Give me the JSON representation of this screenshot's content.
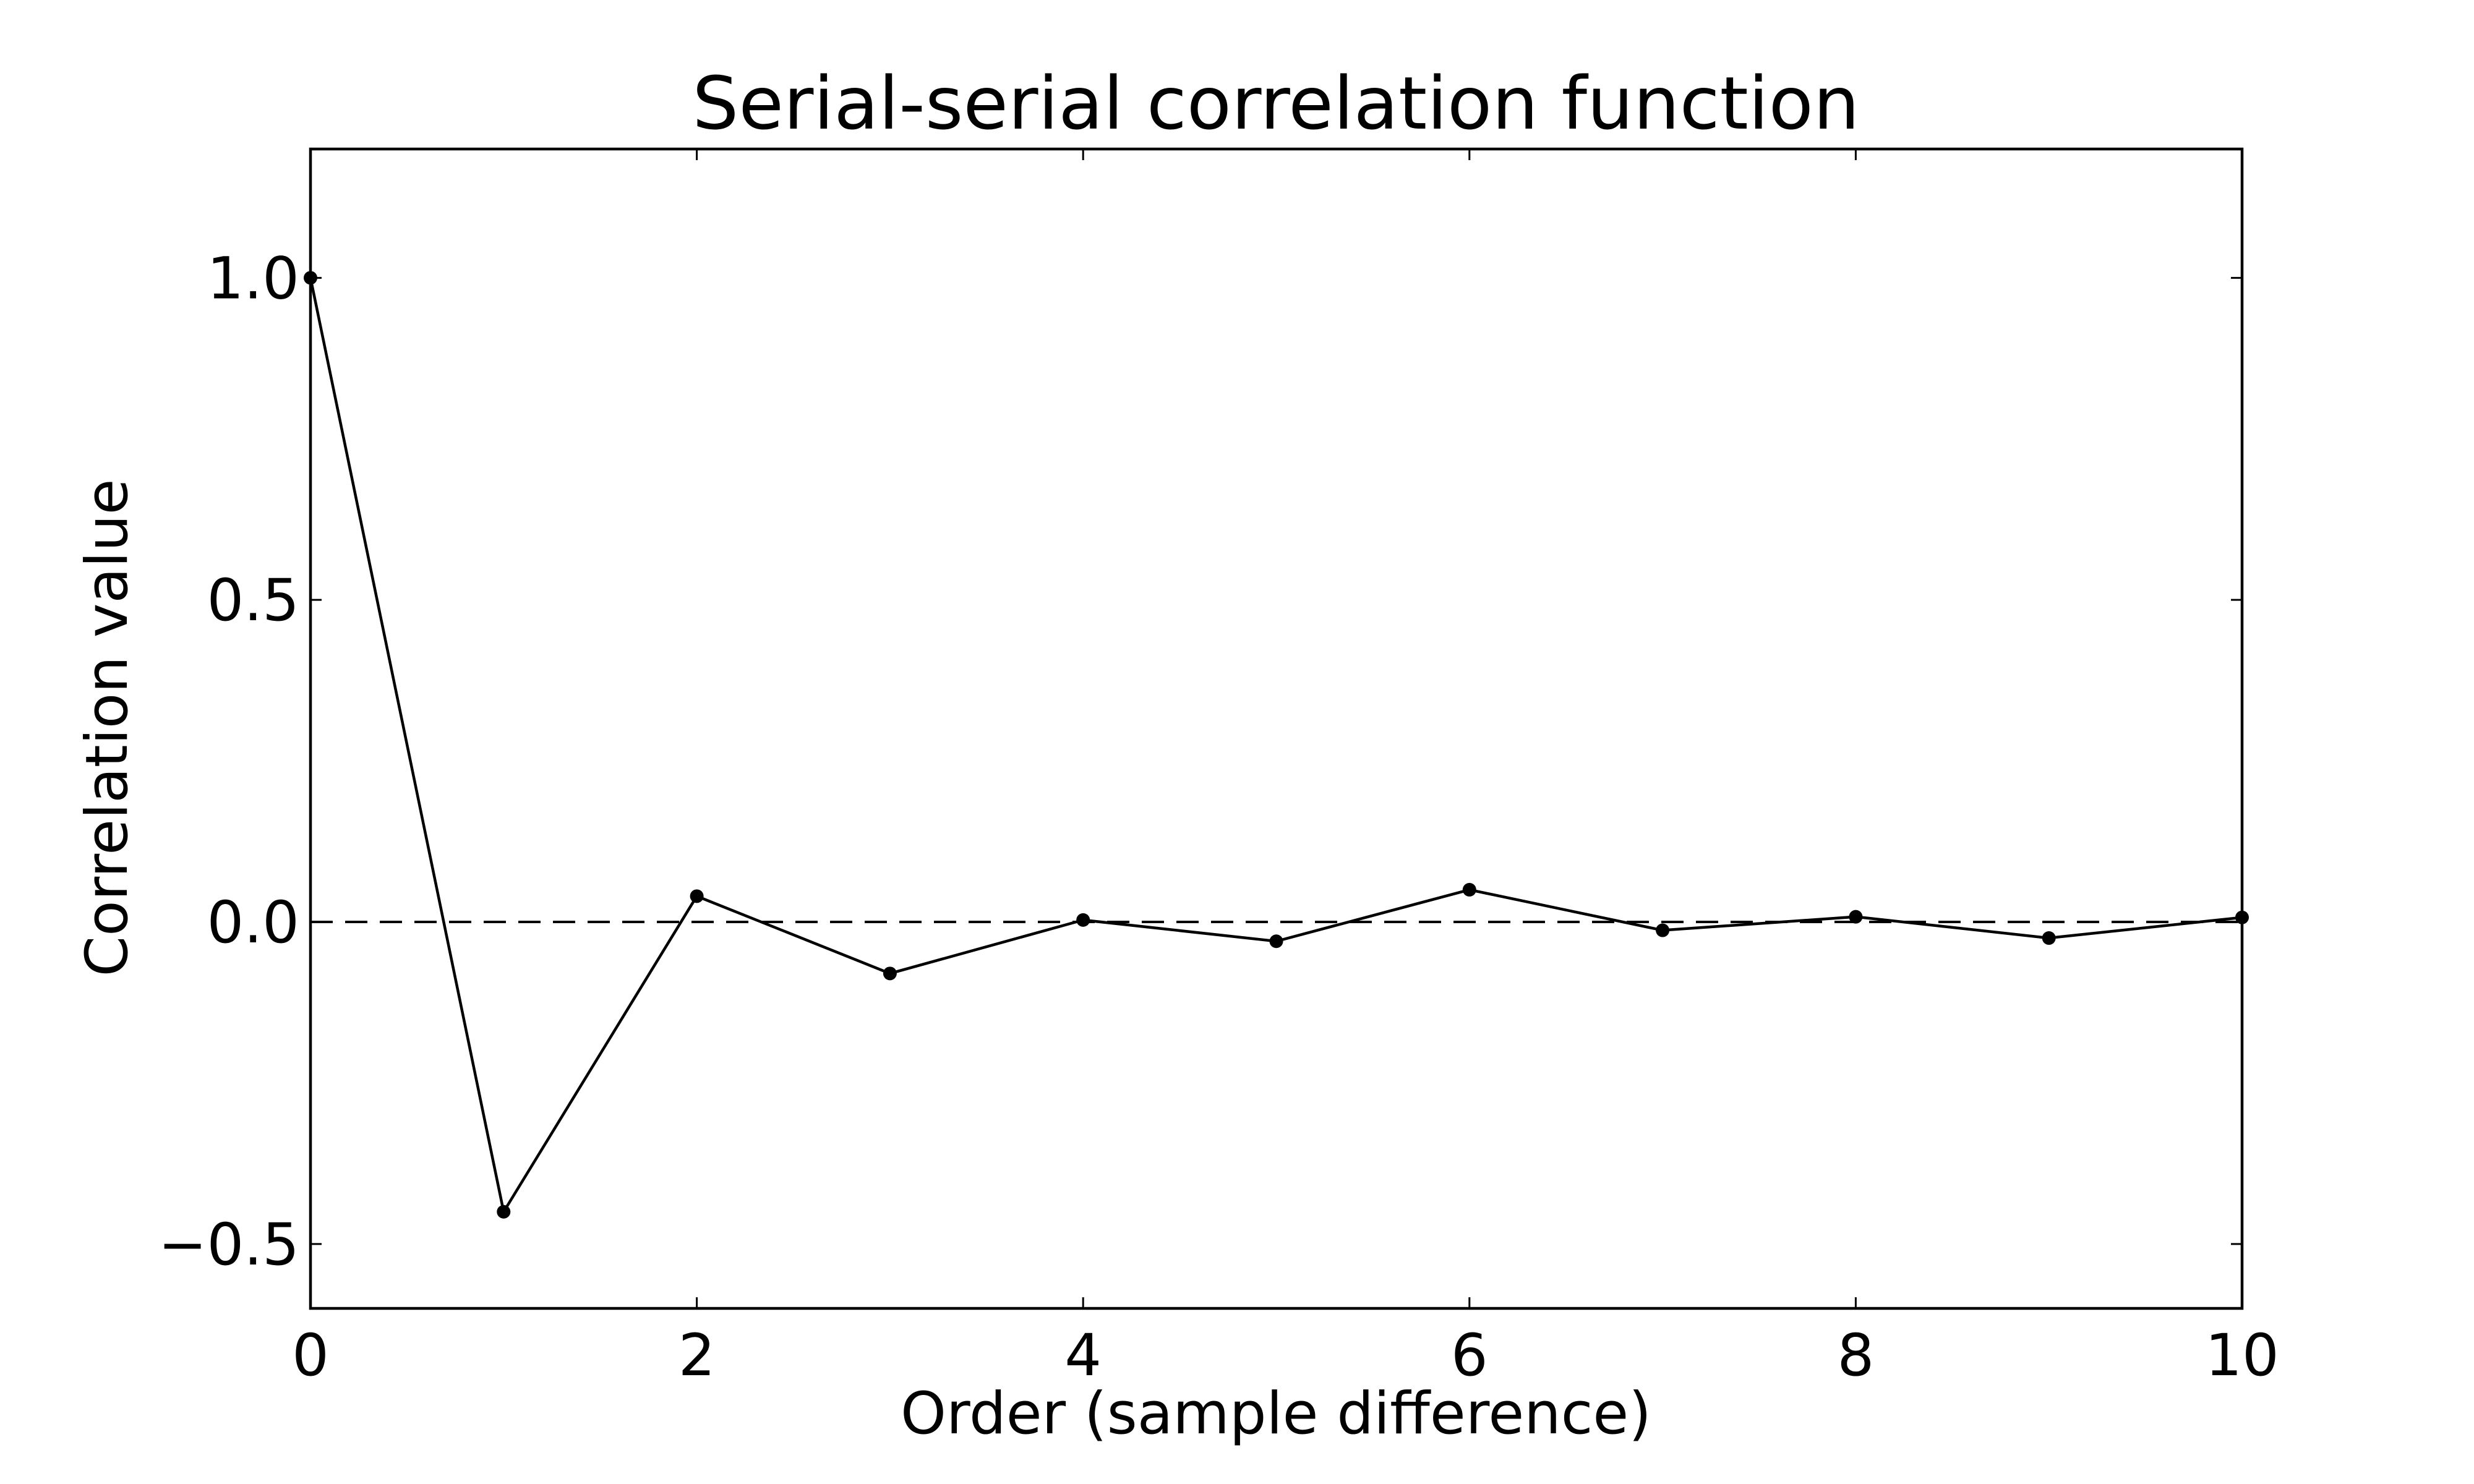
{
  "chart_data": {
    "type": "line",
    "title": "Serial-serial correlation function",
    "xlabel": "Order (sample difference)",
    "ylabel": "Correlation value",
    "xlim": [
      0,
      10
    ],
    "ylim": [
      -0.6,
      1.2
    ],
    "xticks": [
      0,
      2,
      4,
      6,
      8,
      10
    ],
    "xtick_labels": [
      "0",
      "2",
      "4",
      "6",
      "8",
      "10"
    ],
    "yticks": [
      -0.5,
      0.0,
      0.5,
      1.0
    ],
    "ytick_labels": [
      "−0.5",
      "0.0",
      "0.5",
      "1.0"
    ],
    "grid": false,
    "series": [
      {
        "x": [
          0,
          1,
          2,
          3,
          4,
          5,
          6,
          7,
          8,
          9,
          10
        ],
        "values": [
          1.0,
          -0.45,
          0.04,
          -0.08,
          0.003,
          -0.03,
          0.05,
          -0.013,
          0.008,
          -0.025,
          0.007
        ],
        "color": "#000000",
        "marker": "circle"
      }
    ],
    "reference_line": {
      "y": 0.0,
      "style": "dashed",
      "color": "#000000"
    }
  }
}
